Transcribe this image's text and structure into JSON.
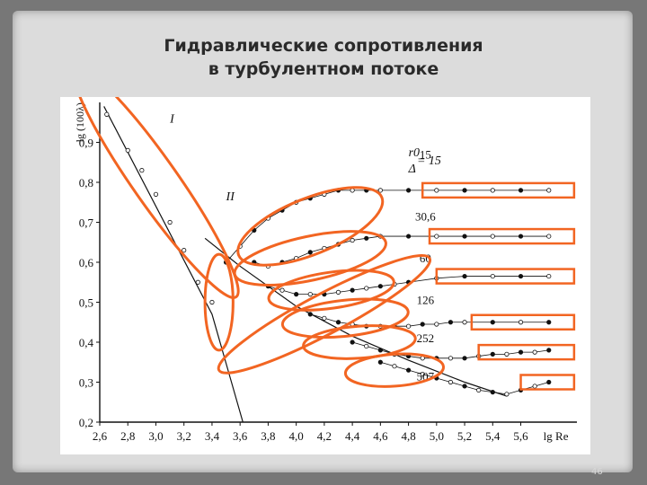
{
  "slide": {
    "title_line1": "Гидравлические сопротивления",
    "title_line2": "в турбулентном потоке",
    "page_number": "46"
  },
  "colors": {
    "accent": "#f26522",
    "data": "#111111",
    "background": "#dcdcdc"
  },
  "chart_data": {
    "type": "scatter",
    "title": "",
    "xlabel": "lg Re",
    "ylabel": "lg (100λ)",
    "xlim": [
      2.6,
      6.0
    ],
    "ylim": [
      0.2,
      1.0
    ],
    "x_ticks": [
      "2,6",
      "2,8",
      "3,0",
      "3,2",
      "3,4",
      "3,6",
      "3,8",
      "4,0",
      "4,2",
      "4,4",
      "4,6",
      "4,8",
      "5,0",
      "5,2",
      "5,4",
      "5,6"
    ],
    "y_ticks": [
      "0,2",
      "0,3",
      "0,4",
      "0,5",
      "0,6",
      "0,7",
      "0,8",
      "0,9"
    ],
    "annotations": [
      {
        "text": "I",
        "x": 3.1,
        "y": 0.95
      },
      {
        "text": "II",
        "x": 3.5,
        "y": 0.755
      },
      {
        "text": "r0",
        "x": 4.8,
        "y": 0.865
      },
      {
        "text": "Δ",
        "x": 4.8,
        "y": 0.825
      },
      {
        "text": "= 15",
        "x": 4.86,
        "y": 0.845
      }
    ],
    "lines": [
      {
        "name": "I",
        "points": [
          [
            2.63,
            0.99
          ],
          [
            3.4,
            0.47
          ],
          [
            3.62,
            0.2
          ]
        ]
      },
      {
        "name": "II",
        "points": [
          [
            3.35,
            0.66
          ],
          [
            3.6,
            0.59
          ],
          [
            4.0,
            0.49
          ],
          [
            4.4,
            0.415
          ],
          [
            4.8,
            0.355
          ],
          [
            5.2,
            0.3
          ],
          [
            5.5,
            0.265
          ]
        ]
      }
    ],
    "series": [
      {
        "name": "15",
        "label_x": 4.92,
        "label_y": 0.86,
        "x": [
          3.5,
          3.6,
          3.7,
          3.8,
          3.9,
          4.0,
          4.1,
          4.2,
          4.3,
          4.4,
          4.5,
          4.6,
          4.8,
          5.0,
          5.2,
          5.4,
          5.6,
          5.8
        ],
        "y": [
          0.6,
          0.64,
          0.68,
          0.71,
          0.73,
          0.75,
          0.76,
          0.77,
          0.78,
          0.78,
          0.78,
          0.78,
          0.78,
          0.78,
          0.78,
          0.78,
          0.78,
          0.78
        ]
      },
      {
        "name": "30,6",
        "label_x": 4.92,
        "label_y": 0.705,
        "x": [
          3.7,
          3.8,
          3.9,
          4.0,
          4.1,
          4.2,
          4.3,
          4.4,
          4.5,
          4.6,
          4.8,
          5.0,
          5.2,
          5.4,
          5.6,
          5.8
        ],
        "y": [
          0.6,
          0.59,
          0.6,
          0.61,
          0.625,
          0.635,
          0.645,
          0.655,
          0.66,
          0.665,
          0.665,
          0.665,
          0.665,
          0.665,
          0.665,
          0.665
        ]
      },
      {
        "name": "60",
        "label_x": 4.92,
        "label_y": 0.6,
        "x": [
          3.8,
          3.9,
          4.0,
          4.1,
          4.2,
          4.3,
          4.4,
          4.5,
          4.6,
          4.7,
          4.8,
          5.0,
          5.2,
          5.4,
          5.6,
          5.8
        ],
        "y": [
          0.54,
          0.53,
          0.52,
          0.52,
          0.52,
          0.525,
          0.53,
          0.535,
          0.54,
          0.545,
          0.55,
          0.56,
          0.565,
          0.565,
          0.565,
          0.565
        ]
      },
      {
        "name": "126",
        "label_x": 4.92,
        "label_y": 0.495,
        "x": [
          4.1,
          4.2,
          4.3,
          4.4,
          4.5,
          4.6,
          4.7,
          4.8,
          4.9,
          5.0,
          5.1,
          5.2,
          5.4,
          5.6,
          5.8
        ],
        "y": [
          0.47,
          0.46,
          0.45,
          0.445,
          0.44,
          0.44,
          0.44,
          0.44,
          0.445,
          0.445,
          0.45,
          0.45,
          0.45,
          0.45,
          0.45
        ]
      },
      {
        "name": "252",
        "label_x": 4.92,
        "label_y": 0.4,
        "x": [
          4.4,
          4.5,
          4.6,
          4.7,
          4.8,
          4.9,
          5.0,
          5.1,
          5.2,
          5.3,
          5.4,
          5.5,
          5.6,
          5.7,
          5.8
        ],
        "y": [
          0.4,
          0.39,
          0.38,
          0.37,
          0.365,
          0.36,
          0.36,
          0.36,
          0.36,
          0.365,
          0.37,
          0.37,
          0.375,
          0.375,
          0.38
        ]
      },
      {
        "name": "507",
        "label_x": 4.92,
        "label_y": 0.305,
        "x": [
          4.6,
          4.7,
          4.8,
          4.9,
          5.0,
          5.1,
          5.2,
          5.3,
          5.4,
          5.5,
          5.6,
          5.7,
          5.8
        ],
        "y": [
          0.35,
          0.34,
          0.33,
          0.32,
          0.31,
          0.3,
          0.29,
          0.28,
          0.275,
          0.27,
          0.28,
          0.29,
          0.3
        ]
      }
    ]
  }
}
